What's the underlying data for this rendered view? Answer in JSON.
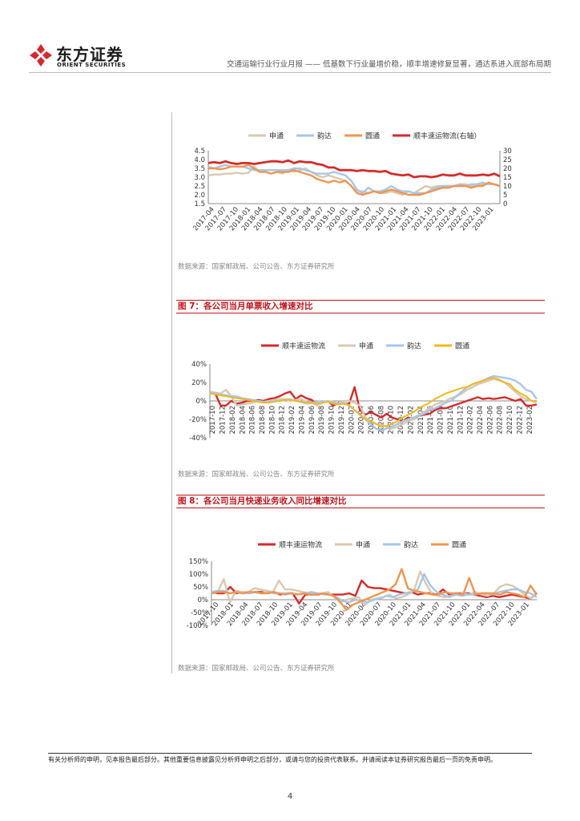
{
  "header": {
    "logo_cn": "东方证券",
    "logo_en": "ORIENT SECURITIES",
    "report_title": "交通运输行业行业月报 —— 低基数下行业量增价稳，顺丰增速修复显著，通达系进入底部布局期"
  },
  "colors": {
    "sf": "#d42b2b",
    "shentong": "#d9c9b0",
    "yunda": "#a6c6ea",
    "yuantong_chart1": "#ef9550",
    "yuantong_chart2": "#f2b81e",
    "yuantong_chart3": "#ef9550",
    "title_red": "#c0141b"
  },
  "figures": [
    {
      "title": "",
      "source": "数据来源：国家邮政局、公司公告、东方证券研究所",
      "chart_data": {
        "type": "line",
        "legend": [
          "申通",
          "韵达",
          "圆通",
          "顺丰速运物流(右轴）"
        ],
        "legend_placement": "top",
        "x_tick_labels": [
          "2017-04",
          "2017-07",
          "2017-10",
          "2018-01",
          "2018-04",
          "2018-07",
          "2018-10",
          "2019-01",
          "2019-04",
          "2019-07",
          "2019-10",
          "2020-01",
          "2020-04",
          "2020-07",
          "2020-10",
          "2021-01",
          "2021-04",
          "2021-07",
          "2021-10",
          "2022-01",
          "2022-04",
          "2022-07",
          "2022-10",
          "2023-01"
        ],
        "y_left_ticks": [
          "1.5",
          "2.0",
          "2.5",
          "3.0",
          "3.5",
          "4.0",
          "4.5"
        ],
        "y_left_range": [
          1.5,
          4.5
        ],
        "y_right_ticks": [
          "0",
          "5",
          "10",
          "15",
          "20",
          "25",
          "30"
        ],
        "y_right_range": [
          0,
          30
        ],
        "series": [
          {
            "name": "申通",
            "axis": "left",
            "values": [
              3.1,
              3.15,
              3.15,
              3.2,
              3.2,
              3.25,
              3.2,
              3.25,
              3.6,
              3.3,
              3.3,
              3.2,
              3.3,
              3.2,
              3.4,
              3.3,
              3.4,
              3.5,
              3.3,
              3.1,
              3.0,
              3.1,
              3.0,
              2.9,
              2.8,
              2.5,
              2.2,
              2.2,
              2.1,
              2.2,
              2.1,
              2.1,
              2.2,
              2.1,
              2.0,
              2.2,
              2.1,
              2.3,
              2.5,
              2.4,
              2.5,
              2.5,
              2.5,
              2.5,
              2.6,
              2.6,
              2.5,
              2.5,
              2.6,
              2.6,
              2.6,
              2.5
            ]
          },
          {
            "name": "韵达",
            "axis": "left",
            "values": [
              3.6,
              3.5,
              3.6,
              3.7,
              3.6,
              3.6,
              3.6,
              3.5,
              3.4,
              3.4,
              3.4,
              3.4,
              3.4,
              3.4,
              3.4,
              3.5,
              3.5,
              3.4,
              3.3,
              3.2,
              3.2,
              3.2,
              3.3,
              3.2,
              3.1,
              2.8,
              2.3,
              2.1,
              2.4,
              2.2,
              2.2,
              2.3,
              2.5,
              2.3,
              2.2,
              2.2,
              2.1,
              2.1,
              2.1,
              2.3,
              2.4,
              2.5,
              2.5,
              2.5,
              2.6,
              2.5,
              2.6,
              2.6,
              2.7,
              2.6,
              2.6,
              2.5
            ]
          },
          {
            "name": "圆通",
            "axis": "left",
            "values": [
              3.5,
              3.5,
              3.45,
              3.5,
              3.6,
              3.6,
              3.6,
              3.7,
              3.5,
              3.3,
              3.3,
              3.2,
              3.3,
              3.3,
              3.3,
              3.4,
              3.3,
              3.2,
              3.1,
              2.9,
              2.8,
              2.7,
              2.8,
              2.7,
              2.8,
              2.5,
              2.1,
              2.0,
              2.1,
              2.2,
              2.1,
              2.2,
              2.3,
              2.2,
              2.1,
              2.0,
              2.0,
              2.0,
              2.1,
              2.2,
              2.3,
              2.4,
              2.4,
              2.5,
              2.5,
              2.5,
              2.4,
              2.5,
              2.5,
              2.7,
              2.6,
              2.5
            ]
          },
          {
            "name": "顺丰速运物流(右轴）",
            "axis": "right",
            "values": [
              23,
              23.5,
              23,
              24,
              23,
              22.5,
              23,
              23,
              22.5,
              23,
              23.5,
              24,
              24,
              23.5,
              24.5,
              23,
              24,
              23.5,
              23.5,
              22.5,
              22,
              20.5,
              20.5,
              19,
              19,
              19,
              18.5,
              19,
              18.5,
              18.5,
              18,
              18.5,
              17,
              16.5,
              16,
              16.5,
              15,
              15.5,
              15.5,
              15,
              15.5,
              16.5,
              16,
              16,
              17,
              16,
              16,
              16,
              16.5,
              16,
              17,
              15.5
            ]
          }
        ]
      }
    },
    {
      "title": "图 7：各公司当月单票收入增速对比",
      "source": "数据来源：国家邮政局、公司公告、东方证券研究所",
      "chart_data": {
        "type": "line",
        "legend": [
          "顺丰速运物流",
          "申通",
          "韵达",
          "圆通"
        ],
        "legend_placement": "top",
        "x_tick_labels": [
          "2017-10",
          "2017-12",
          "2018-02",
          "2018-04",
          "2018-06",
          "2018-08",
          "2018-10",
          "2018-12",
          "2019-02",
          "2019-04",
          "2019-06",
          "2019-08",
          "2019-10",
          "2019-12",
          "2020-02",
          "2020-04",
          "2020-06",
          "2020-08",
          "2020-10",
          "2020-12",
          "2021-02",
          "2021-04",
          "2021-06",
          "2021-08",
          "2021-10",
          "2021-12",
          "2022-02",
          "2022-04",
          "2022-06",
          "2022-08",
          "2022-10",
          "2022-12",
          "2023-02"
        ],
        "y_ticks": [
          "40%",
          "20%",
          "0%",
          "-20%",
          "-40%"
        ],
        "y_range": [
          -40,
          40
        ],
        "series": [
          {
            "name": "顺丰速运物流",
            "values": [
              10,
              8,
              -5,
              -5,
              0,
              -3,
              -2,
              0,
              0,
              1,
              0,
              2,
              3,
              5,
              8,
              10,
              2,
              6,
              3,
              1,
              -4,
              -2,
              0,
              -5,
              -2,
              -3,
              -3,
              15,
              -10,
              -15,
              -12,
              -15,
              -18,
              -14,
              -18,
              -20,
              -22,
              -18,
              -20,
              -16,
              -15,
              -14,
              -10,
              -8,
              -8,
              -6,
              -4,
              -2,
              0,
              2,
              4,
              2,
              3,
              2,
              3,
              4,
              2,
              0,
              2,
              -5,
              -5,
              -4
            ]
          },
          {
            "name": "申通",
            "values": [
              10,
              9,
              8,
              12,
              5,
              -5,
              -4,
              -3,
              -2,
              0,
              -1,
              0,
              1,
              2,
              2,
              0,
              1,
              2,
              -1,
              -2,
              -5,
              -2,
              0,
              -1,
              -3,
              0,
              0,
              -2,
              -5,
              -18,
              -22,
              -25,
              -26,
              -28,
              -30,
              -28,
              -25,
              -22,
              -20,
              -15,
              -12,
              -8,
              -4,
              -2,
              0,
              3,
              5,
              8,
              12,
              15,
              18,
              20,
              22,
              24,
              22,
              20,
              15,
              10,
              5,
              2,
              0,
              -2
            ]
          },
          {
            "name": "韵达",
            "values": [
              9,
              8,
              7,
              6,
              5,
              5,
              3,
              2,
              1,
              0,
              -1,
              -1,
              0,
              0,
              1,
              2,
              0,
              -1,
              -3,
              -2,
              -1,
              0,
              -1,
              -2,
              -3,
              -2,
              -5,
              -10,
              -15,
              -20,
              -25,
              -30,
              -32,
              -30,
              -28,
              -25,
              -22,
              -20,
              -18,
              -16,
              -14,
              -10,
              -8,
              -5,
              -2,
              0,
              5,
              10,
              15,
              18,
              20,
              22,
              25,
              27,
              26,
              25,
              24,
              22,
              18,
              12,
              10,
              2
            ]
          },
          {
            "name": "圆通",
            "values": [
              8,
              7,
              6,
              5,
              4,
              3,
              2,
              1,
              0,
              -1,
              -2,
              -2,
              -1,
              0,
              1,
              1,
              0,
              -1,
              -2,
              -2,
              -3,
              -2,
              -1,
              -3,
              -4,
              -3,
              -5,
              -10,
              -15,
              -20,
              -22,
              -25,
              -28,
              -27,
              -25,
              -22,
              -18,
              -15,
              -12,
              -8,
              -5,
              -2,
              2,
              5,
              8,
              10,
              12,
              14,
              15,
              18,
              20,
              22,
              24,
              25,
              23,
              20,
              18,
              12,
              8,
              5,
              0,
              0
            ]
          }
        ]
      }
    },
    {
      "title": "图 8：各公司当月快递业务收入同比增速对比",
      "source": "数据来源：国家邮政局、公司公告、东方证券研究所",
      "chart_data": {
        "type": "line",
        "legend": [
          "顺丰速运物流",
          "申通",
          "韵达",
          "圆通"
        ],
        "legend_placement": "top",
        "x_tick_labels": [
          "2017-10",
          "2018-01",
          "2018-04",
          "2018-07",
          "2018-10",
          "2019-01",
          "2019-04",
          "2019-07",
          "2019-10",
          "2020-01",
          "2020-04",
          "2020-07",
          "2020-10",
          "2021-01",
          "2021-04",
          "2021-07",
          "2021-10",
          "2022-01",
          "2022-04",
          "2022-07",
          "2022-10",
          "2023-01"
        ],
        "y_ticks": [
          "150%",
          "100%",
          "50%",
          "0%",
          "-50%",
          "-100%"
        ],
        "y_range": [
          -100,
          150
        ],
        "series": [
          {
            "name": "顺丰速运物流",
            "values": [
              30,
              25,
              25,
              50,
              25,
              30,
              25,
              30,
              30,
              25,
              30,
              20,
              25,
              25,
              -15,
              20,
              20,
              20,
              25,
              20,
              20,
              20,
              25,
              15,
              75,
              50,
              45,
              45,
              40,
              35,
              30,
              25,
              30,
              20,
              25,
              25,
              20,
              40,
              20,
              25,
              25,
              25,
              20,
              15,
              10,
              15,
              10,
              15,
              20,
              15,
              10,
              5,
              25
            ]
          },
          {
            "name": "申通",
            "values": [
              25,
              30,
              80,
              -10,
              35,
              30,
              30,
              45,
              40,
              35,
              30,
              75,
              40,
              40,
              35,
              30,
              25,
              20,
              25,
              30,
              10,
              -10,
              0,
              5,
              10,
              -20,
              0,
              5,
              10,
              20,
              5,
              10,
              20,
              35,
              110,
              60,
              20,
              15,
              10,
              15,
              20,
              25,
              20,
              30,
              20,
              15,
              25,
              50,
              60,
              55,
              40,
              20,
              5,
              30
            ]
          },
          {
            "name": "韵达",
            "values": [
              30,
              35,
              35,
              25,
              30,
              25,
              25,
              30,
              25,
              30,
              25,
              25,
              25,
              25,
              20,
              25,
              30,
              25,
              20,
              20,
              10,
              -5,
              -10,
              0,
              -5,
              -10,
              0,
              5,
              15,
              10,
              20,
              25,
              30,
              40,
              100,
              55,
              30,
              20,
              10,
              20,
              15,
              20,
              20,
              25,
              25,
              20,
              30,
              35,
              40,
              40,
              30,
              25,
              10
            ]
          },
          {
            "name": "圆通",
            "values": [
              25,
              30,
              30,
              25,
              30,
              25,
              30,
              30,
              25,
              25,
              30,
              25,
              20,
              25,
              20,
              25,
              20,
              20,
              25,
              20,
              15,
              -10,
              -40,
              -20,
              -10,
              0,
              10,
              20,
              30,
              40,
              60,
              120,
              45,
              35,
              30,
              25,
              20,
              20,
              30,
              25,
              25,
              20,
              85,
              20,
              25,
              25,
              25,
              20,
              30,
              25,
              20,
              10,
              55,
              20
            ]
          }
        ]
      }
    }
  ],
  "disclaimer": "有关分析师的申明，见本报告最后部分。其他重要信息披露见分析师申明之后部分，或请与您的投资代表联系。并请阅读本证券研究报告最后一页的免责申明。",
  "page_number": "4"
}
